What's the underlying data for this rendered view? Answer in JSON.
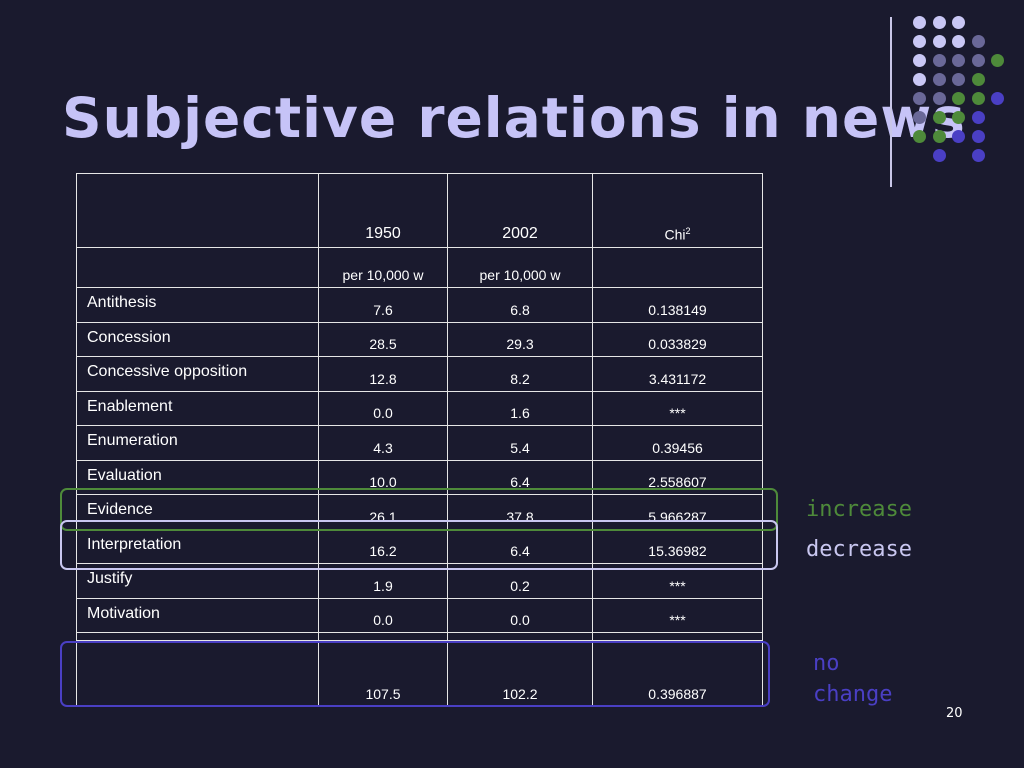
{
  "slide": {
    "title": "Subjective relations in news",
    "page_number": "20"
  },
  "table": {
    "headers": [
      "",
      "1950",
      "2002",
      "Chi"
    ],
    "header_superscript": "2",
    "units": [
      "",
      "per 10,000 w",
      "per 10,000 w",
      ""
    ],
    "rows": [
      {
        "label": "Antithesis",
        "y1950": "7.6",
        "y2002": "6.8",
        "chi": "0.138149"
      },
      {
        "label": "Concession",
        "y1950": "28.5",
        "y2002": "29.3",
        "chi": "0.033829"
      },
      {
        "label": "Concessive opposition",
        "y1950": "12.8",
        "y2002": "8.2",
        "chi": "3.431172"
      },
      {
        "label": "Enablement",
        "y1950": "0.0",
        "y2002": "1.6",
        "chi": "***"
      },
      {
        "label": "Enumeration",
        "y1950": "4.3",
        "y2002": "5.4",
        "chi": "0.39456"
      },
      {
        "label": "Evaluation",
        "y1950": "10.0",
        "y2002": "6.4",
        "chi": "2.558607"
      },
      {
        "label": "Evidence",
        "y1950": "26.1",
        "y2002": "37.8",
        "chi": "5.966287"
      },
      {
        "label": "Interpretation",
        "y1950": "16.2",
        "y2002": "6.4",
        "chi": "15.36982"
      },
      {
        "label": "Justify",
        "y1950": "1.9",
        "y2002": "0.2",
        "chi": "***"
      },
      {
        "label": "Motivation",
        "y1950": "0.0",
        "y2002": "0.0",
        "chi": "***"
      },
      {
        "label": "",
        "y1950": "",
        "y2002": "",
        "chi": ""
      }
    ],
    "total": {
      "label": "",
      "y1950": "107.5",
      "y2002": "102.2",
      "chi": "0.396887"
    }
  },
  "legend": {
    "increase": "increase",
    "decrease": "decrease",
    "no_change_line1": "no",
    "no_change_line2": "change"
  },
  "colors": {
    "background": "#1a1a2e",
    "title": "#c6c3f7",
    "increase": "#4e8a3a",
    "decrease": "#c9c7f0",
    "no_change": "#4a3fc4",
    "dot_light": "#c9c7f5",
    "dot_mid": "#6a6898",
    "dot_green": "#4e8a3a",
    "dot_blue": "#4a3fc4"
  }
}
